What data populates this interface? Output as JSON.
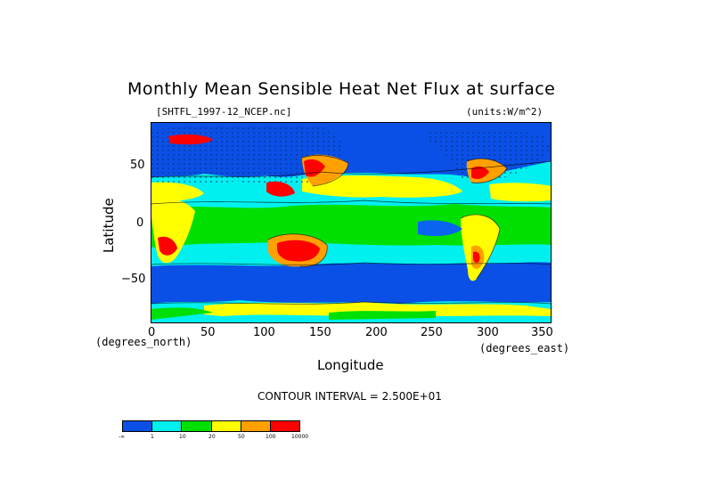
{
  "title": "Monthly Mean Sensible Heat Net Flux at surface",
  "file_label": "[SHTFL_1997-12_NCEP.nc]",
  "units_label": "(units:W/m^2)",
  "x_axis": {
    "label": "Longitude",
    "ticks": [
      "0",
      "50",
      "100",
      "150",
      "200",
      "250",
      "300",
      "350"
    ],
    "left_note": "(degrees_north)",
    "right_note": "(degrees_east)"
  },
  "y_axis": {
    "label": "Latitude",
    "ticks": [
      "50",
      "0",
      "−50"
    ]
  },
  "contour_interval": "CONTOUR INTERVAL = 2.500E+01",
  "colorbar": {
    "labels": [
      "-∞",
      "1",
      "10",
      "20",
      "50",
      "100",
      "10000"
    ],
    "colors": [
      "#0a50e6",
      "#00f0f0",
      "#00e000",
      "#ffff00",
      "#ffa000",
      "#ff0000"
    ]
  },
  "colors": {
    "deep_blue": "#0a50e6",
    "mid_blue": "#0a64f0",
    "cyan": "#00f0f0",
    "green": "#00e000",
    "yellow": "#ffff00",
    "orange": "#ffa000",
    "red": "#ff0000"
  }
}
